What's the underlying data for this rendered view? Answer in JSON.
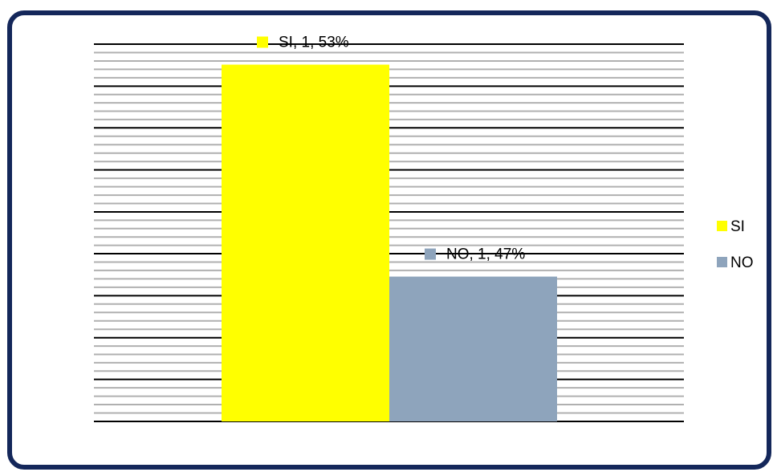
{
  "chart_data": {
    "type": "bar",
    "series": [
      {
        "name": "SI",
        "color": "#ffff00",
        "values": [
          53
        ],
        "value_labels": [
          "SI, 1, 53%"
        ]
      },
      {
        "name": "NO",
        "color": "#8ea4bc",
        "values": [
          47
        ],
        "value_labels": [
          "NO, 1, 47%"
        ]
      }
    ],
    "ylim": [
      42.9,
      53.58
    ],
    "yticks": [
      42.9,
      44.09,
      45.27,
      46.46,
      47.65,
      48.83,
      50.02,
      51.21,
      52.39,
      53.58
    ],
    "grid": true,
    "legend": "right"
  }
}
